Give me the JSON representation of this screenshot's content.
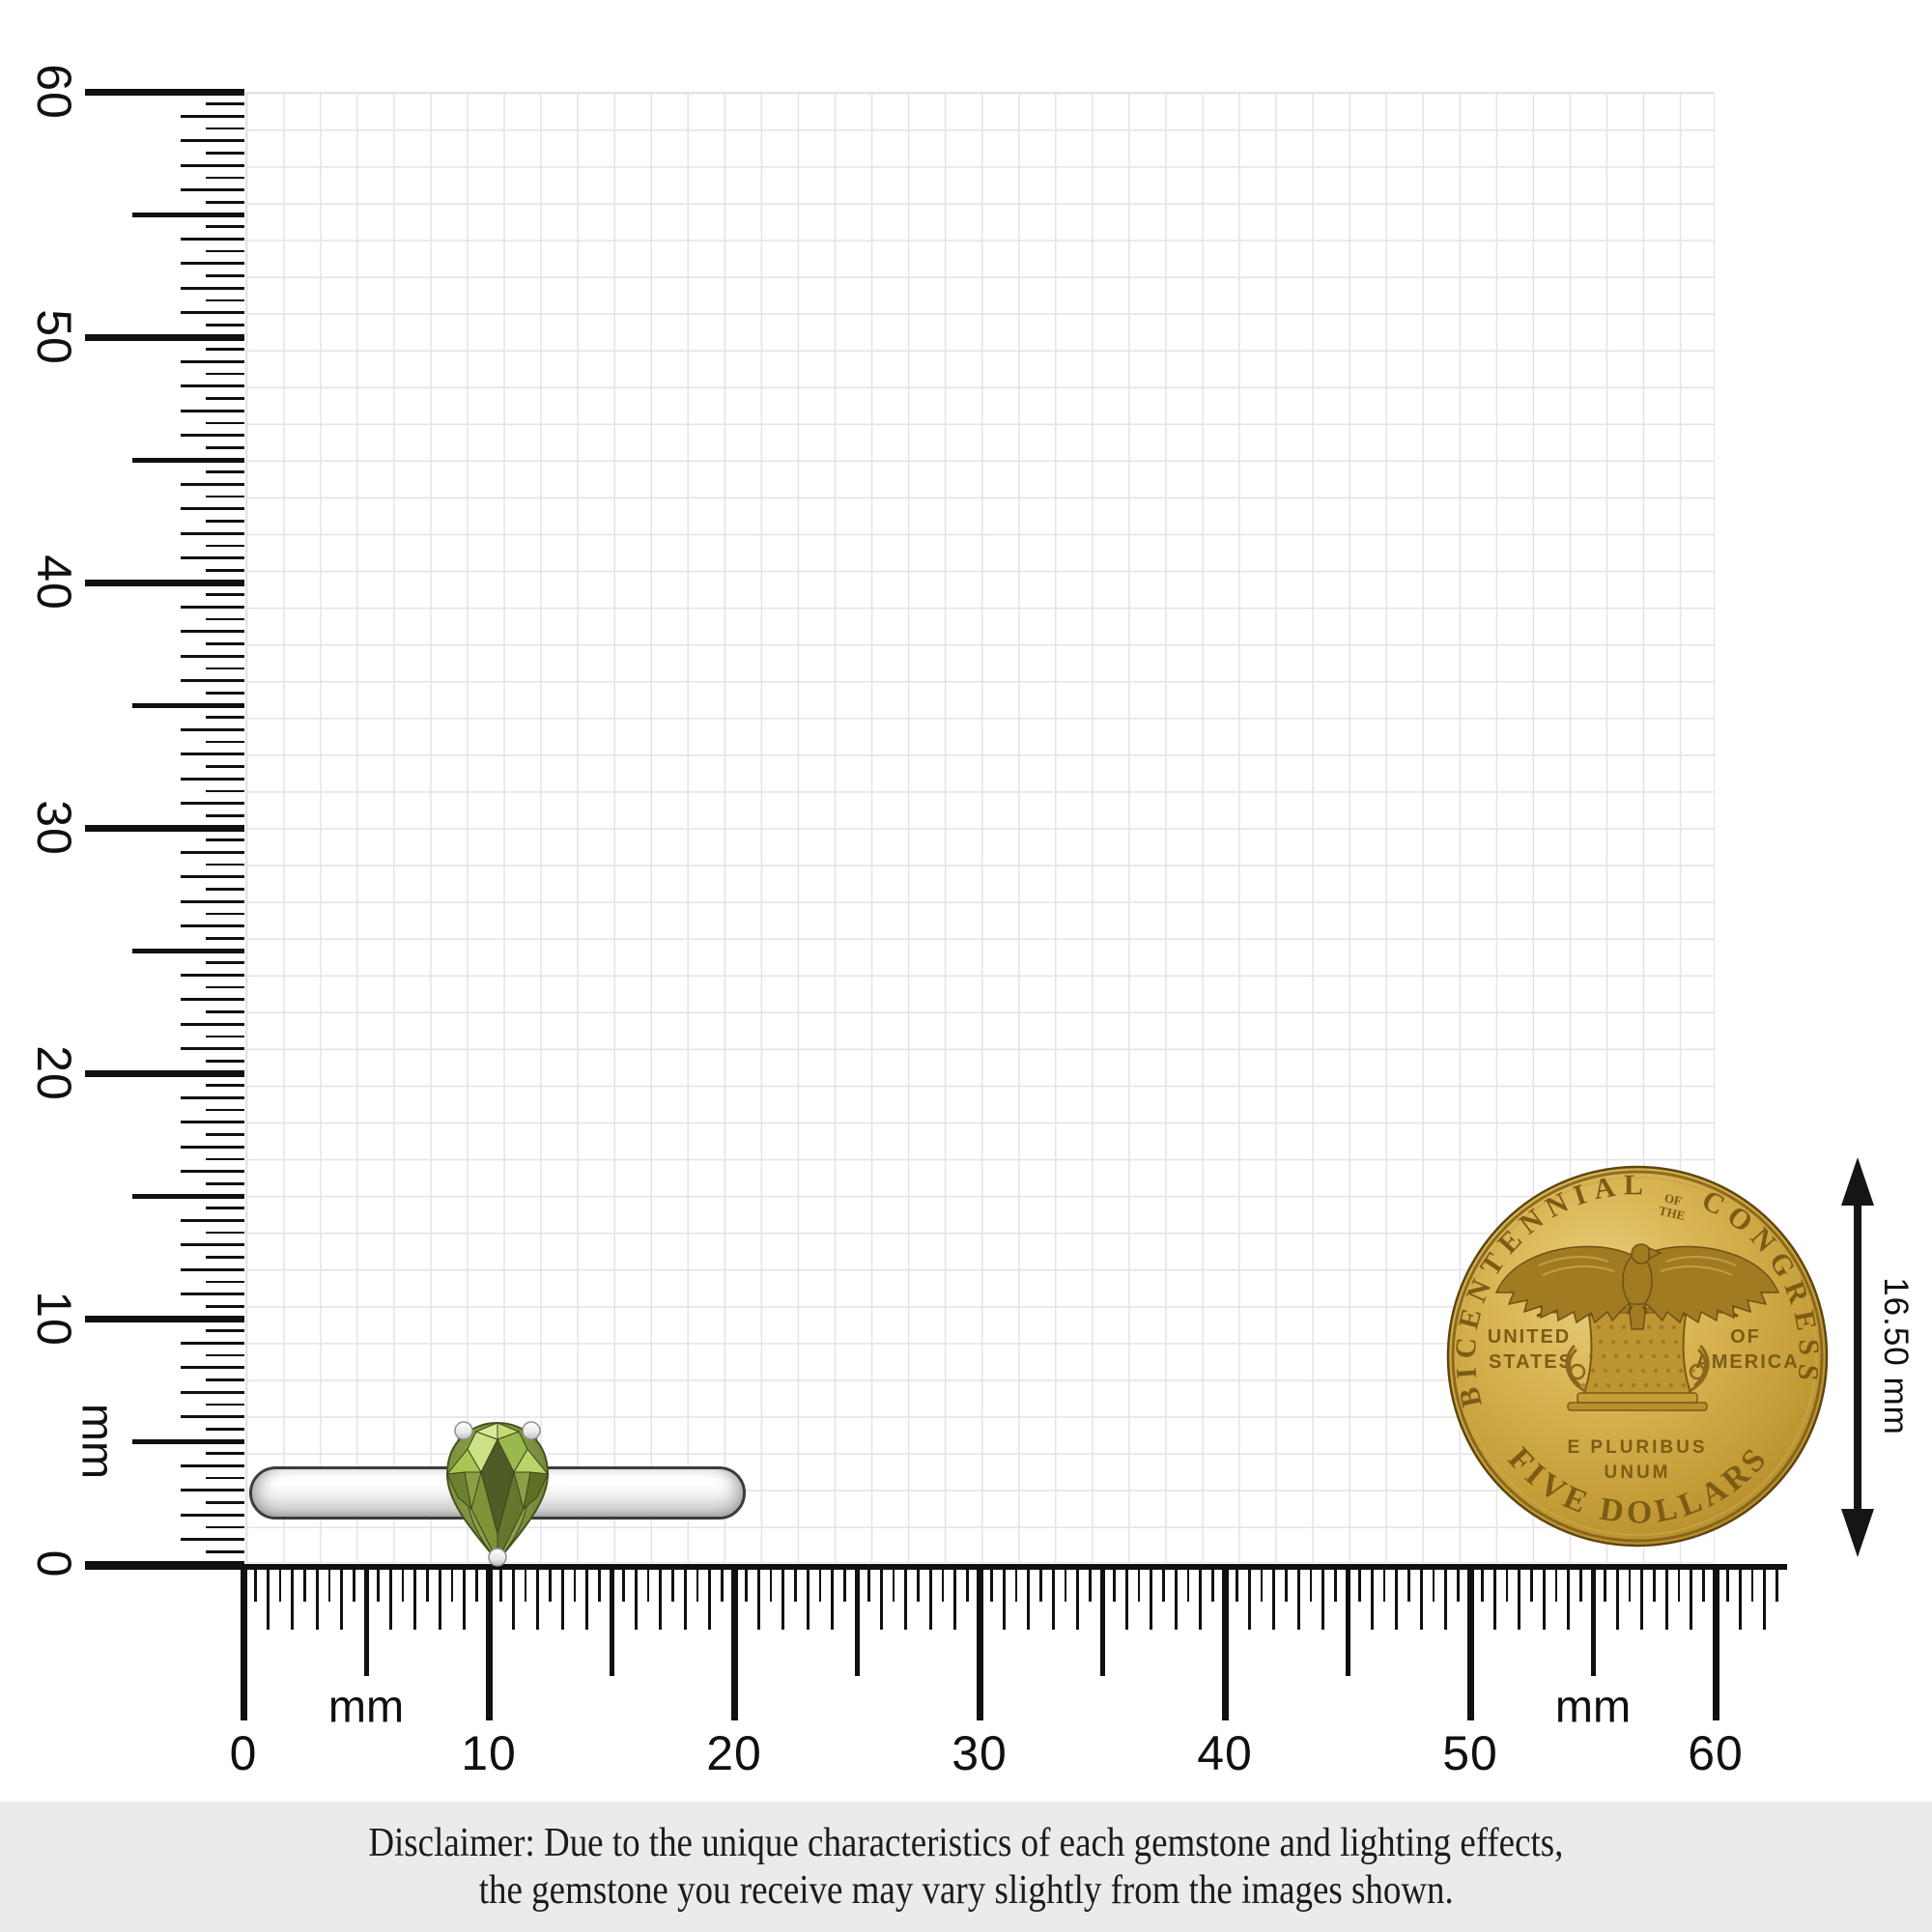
{
  "rulers": {
    "unit": "mm",
    "left": {
      "labels": [
        "60",
        "50",
        "40",
        "30",
        "20",
        "10",
        "0"
      ]
    },
    "bottom": {
      "labels": [
        "0",
        "10",
        "20",
        "30",
        "40",
        "50",
        "60"
      ]
    }
  },
  "coin": {
    "legend_arc_left": "BICENTENNIAL",
    "legend_small_top": "OF",
    "legend_small_bottom": "THE",
    "legend_arc_right": "CONGRESS",
    "legend_bottom": "FIVE DOLLARS",
    "left_line1": "UNITED",
    "left_line2": "STATES",
    "right_line1": "OF",
    "right_line2": "AMERICA",
    "motto_line1": "E PLURIBUS",
    "motto_line2": "UNUM"
  },
  "dimension": {
    "label": "16.50 mm"
  },
  "disclaimer": {
    "line1": "Disclaimer: Due to the unique characteristics of each gemstone and lighting effects,",
    "line2": "the gemstone you receive may vary slightly from the images shown."
  },
  "colors": {
    "coin_gold": "#cda23d",
    "coin_gold_dark": "#8a671c",
    "gem_green": "#7d9140",
    "gem_green_dark": "#4f5c28",
    "gem_green_light": "#cbe287",
    "metal_silver": "#f2f2f2",
    "grid_line": "#e3e3e8",
    "ink": "#101010",
    "disclaimer_bg": "#ebebeb"
  }
}
